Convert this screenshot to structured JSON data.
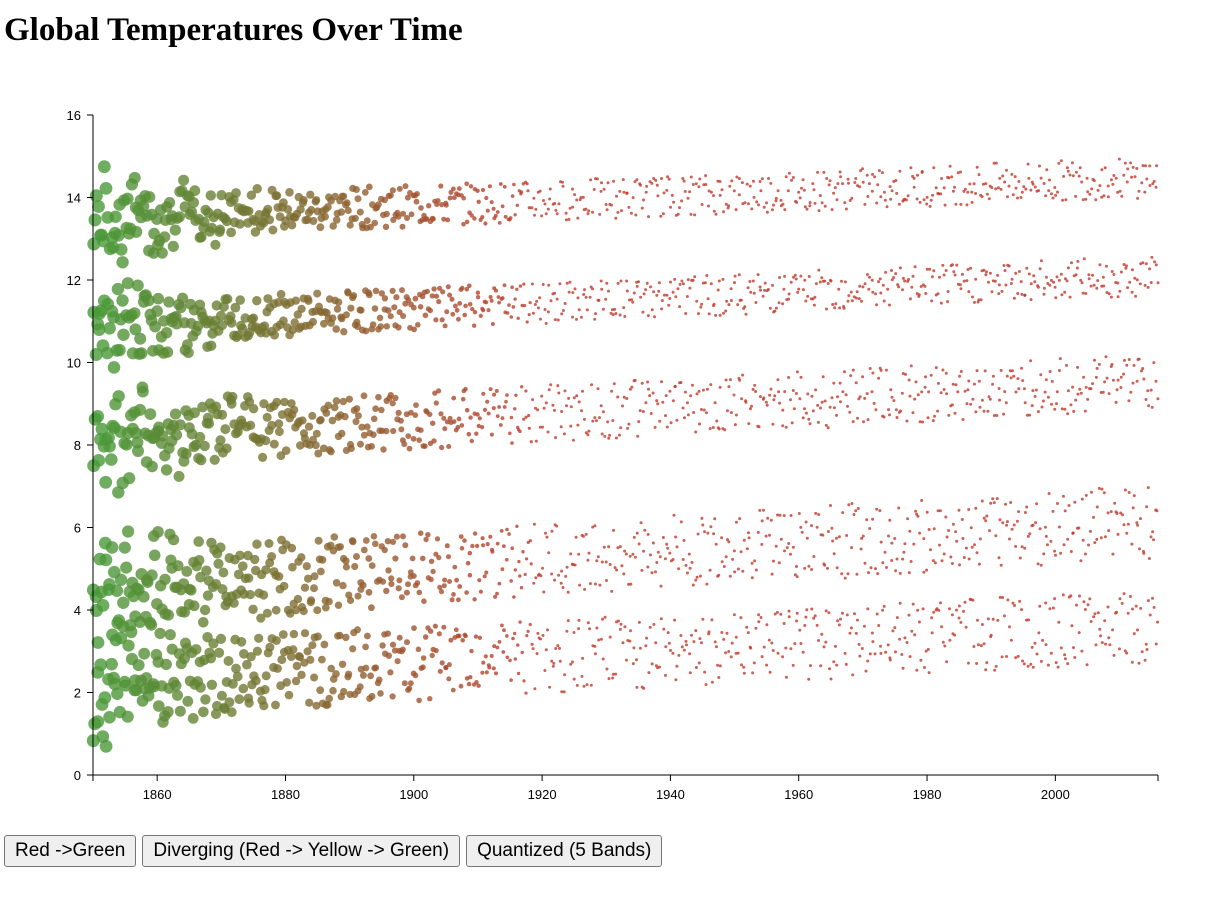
{
  "page": {
    "title": "Global Temperatures Over Time"
  },
  "buttons": [
    {
      "label": "Red ->Green"
    },
    {
      "label": "Diverging (Red -> Yellow -> Green)"
    },
    {
      "label": "Quantized (5 Bands)"
    }
  ],
  "colors": {
    "low_end": "#3aa63a",
    "high_end": "#c0392b",
    "axis": "#000000"
  },
  "chart_data": {
    "type": "scatter",
    "title": "Global Temperatures Over Time",
    "xlabel": "",
    "ylabel": "",
    "xlim": [
      1850,
      2016
    ],
    "ylim": [
      0,
      16
    ],
    "x_ticks": [
      1860,
      1880,
      1900,
      1920,
      1940,
      1960,
      1980,
      2000
    ],
    "y_ticks": [
      0,
      2,
      4,
      6,
      8,
      10,
      12,
      14,
      16
    ],
    "grid": false,
    "legend": "none",
    "encoding": "point size and color vary with year: early years larger and greener, later years smaller and redder",
    "bands": [
      {
        "name": "",
        "center": 13.8,
        "slope": 0.006,
        "amplitude": 0.5
      },
      {
        "name": "",
        "center": 11.3,
        "slope": 0.007,
        "amplitude": 0.5
      },
      {
        "name": "",
        "center": 8.6,
        "slope": 0.008,
        "amplitude": 0.7
      },
      {
        "name": "",
        "center": 5.0,
        "slope": 0.01,
        "amplitude": 0.9
      },
      {
        "name": "",
        "center": 2.7,
        "slope": 0.008,
        "amplitude": 0.9
      }
    ]
  }
}
